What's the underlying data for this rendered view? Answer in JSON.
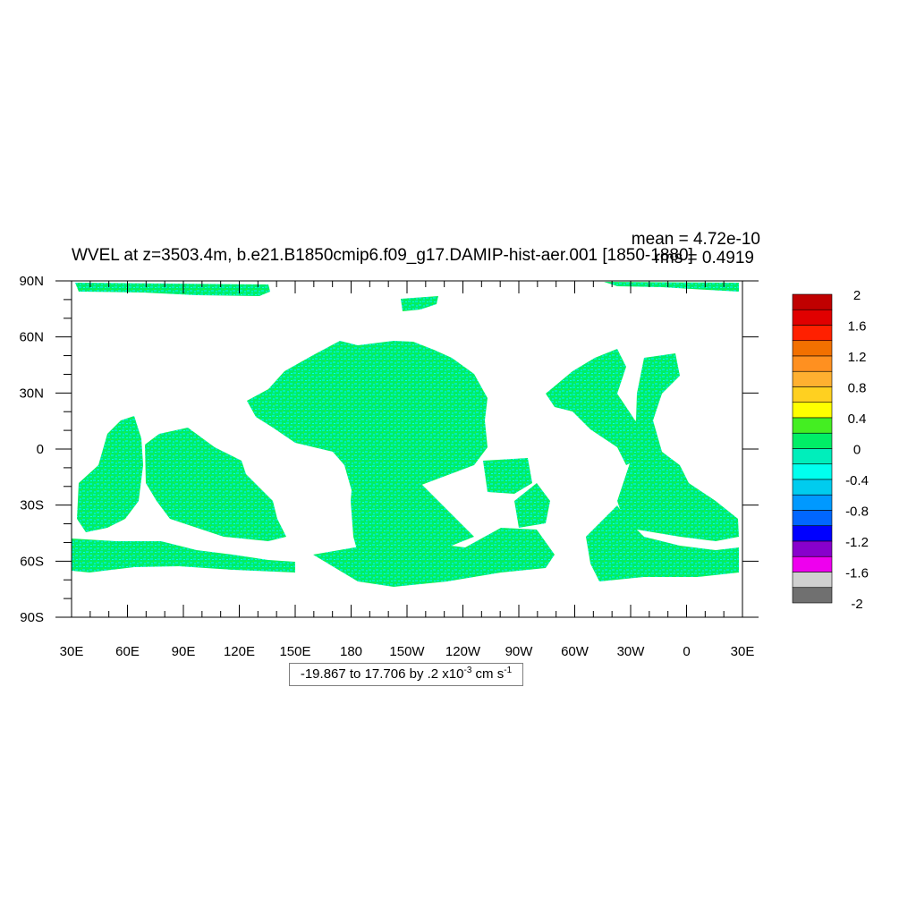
{
  "chart_data": {
    "type": "heatmap",
    "title": "WVEL at z=3503.4m, b.e21.B1850cmip6.f09_g17.DAMIP-hist-aer.001 [1850-1880]",
    "stats": {
      "mean": "mean = 4.72e-10",
      "rms": "rms = 0.4919"
    },
    "x_tick_labels": [
      "30E",
      "60E",
      "90E",
      "120E",
      "150E",
      "180",
      "150W",
      "120W",
      "90W",
      "60W",
      "30W",
      "0",
      "30E"
    ],
    "y_tick_labels": [
      "90N",
      "60N",
      "30N",
      "0",
      "30S",
      "60S",
      "90S"
    ],
    "xlim": [
      30,
      390
    ],
    "ylim": [
      -90,
      90
    ],
    "range_label": {
      "text": "-19.867 to 17.706 by .2 x10",
      "exp": "-3",
      "unit": " cm s",
      "unit_exp": "-1"
    },
    "colorbar": {
      "labels": [
        "2",
        "1.6",
        "1.2",
        "0.8",
        "0.4",
        "0",
        "-0.4",
        "-0.8",
        "-1.2",
        "-1.6",
        "-2"
      ],
      "colors": [
        "#c00000",
        "#e00000",
        "#ff2000",
        "#f27000",
        "#ff9020",
        "#ffb030",
        "#ffd020",
        "#ffff00",
        "#44ee22",
        "#00ee66",
        "#00eebb",
        "#00ffee",
        "#00ccee",
        "#0099ff",
        "#0066ff",
        "#0000ff",
        "#8800cc",
        "#ee00ee",
        "#d0d0d0",
        "#707070"
      ]
    },
    "field_colors": {
      "dominant": "#00ee66",
      "secondary": "#00eebb",
      "accent": [
        "#00ffee",
        "#44ee22",
        "#ffff00",
        "#ff2000",
        "#0066ff"
      ]
    }
  }
}
